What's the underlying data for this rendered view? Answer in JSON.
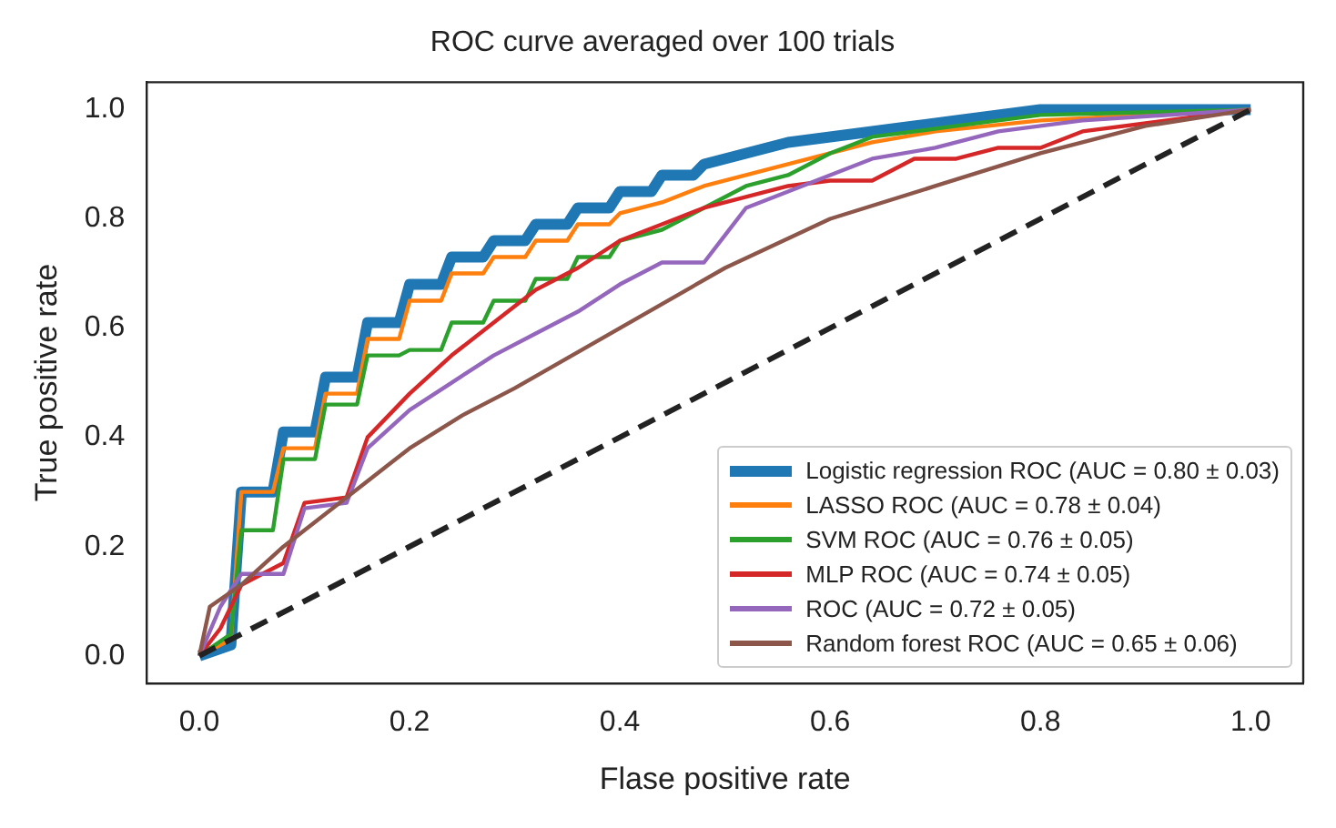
{
  "chart_data": {
    "type": "line",
    "title": "ROC curve averaged over 100 trials",
    "xlabel": "Flase positive rate",
    "ylabel": "True positive rate",
    "xlim": [
      -0.05,
      1.05
    ],
    "ylim": [
      -0.05,
      1.05
    ],
    "xticks": [
      {
        "value": 0,
        "label": "0.0"
      },
      {
        "value": 0.2,
        "label": "0.2"
      },
      {
        "value": 0.4,
        "label": "0.4"
      },
      {
        "value": 0.6,
        "label": "0.6"
      },
      {
        "value": 0.8,
        "label": "0.8"
      },
      {
        "value": 1,
        "label": "1.0"
      }
    ],
    "yticks": [
      {
        "value": 0,
        "label": "0.0"
      },
      {
        "value": 0.2,
        "label": "0.2"
      },
      {
        "value": 0.4,
        "label": "0.4"
      },
      {
        "value": 0.6,
        "label": "0.6"
      },
      {
        "value": 0.8,
        "label": "0.8"
      },
      {
        "value": 1,
        "label": "1.0"
      }
    ],
    "grid": false,
    "legend": "bottom right",
    "marker": "none",
    "series": [
      {
        "name": "Logistic regression ROC (AUC = 0.80 ± 0.03)",
        "color": "#1f77b4",
        "x": [
          0,
          0.03,
          0.04,
          0.07,
          0.08,
          0.11,
          0.12,
          0.15,
          0.16,
          0.19,
          0.2,
          0.23,
          0.24,
          0.27,
          0.28,
          0.31,
          0.32,
          0.35,
          0.36,
          0.39,
          0.4,
          0.43,
          0.44,
          0.47,
          0.48,
          0.52,
          0.56,
          0.6,
          0.64,
          0.68,
          0.72,
          0.76,
          0.8,
          1
        ],
        "values": [
          0,
          0.02,
          0.3,
          0.3,
          0.41,
          0.41,
          0.51,
          0.51,
          0.61,
          0.61,
          0.68,
          0.68,
          0.73,
          0.73,
          0.76,
          0.76,
          0.79,
          0.79,
          0.82,
          0.82,
          0.85,
          0.85,
          0.88,
          0.88,
          0.9,
          0.92,
          0.94,
          0.95,
          0.96,
          0.97,
          0.98,
          0.99,
          1,
          1
        ]
      },
      {
        "name": "LASSO ROC (AUC = 0.78 ± 0.04)",
        "color": "#ff7f0e",
        "x": [
          0,
          0.03,
          0.04,
          0.07,
          0.08,
          0.11,
          0.12,
          0.15,
          0.16,
          0.19,
          0.2,
          0.23,
          0.24,
          0.27,
          0.28,
          0.31,
          0.32,
          0.35,
          0.36,
          0.39,
          0.4,
          0.44,
          0.48,
          0.52,
          0.56,
          0.6,
          0.64,
          0.7,
          0.8,
          1
        ],
        "values": [
          0,
          0.03,
          0.3,
          0.3,
          0.38,
          0.38,
          0.48,
          0.48,
          0.58,
          0.58,
          0.65,
          0.65,
          0.7,
          0.7,
          0.73,
          0.73,
          0.76,
          0.76,
          0.79,
          0.79,
          0.81,
          0.83,
          0.86,
          0.88,
          0.9,
          0.92,
          0.94,
          0.96,
          0.98,
          1
        ]
      },
      {
        "name": "SVM ROC (AUC = 0.76 ± 0.05)",
        "color": "#2ca02c",
        "x": [
          0,
          0.03,
          0.04,
          0.07,
          0.08,
          0.11,
          0.12,
          0.15,
          0.16,
          0.19,
          0.2,
          0.23,
          0.24,
          0.27,
          0.28,
          0.31,
          0.32,
          0.35,
          0.36,
          0.39,
          0.4,
          0.44,
          0.48,
          0.52,
          0.56,
          0.6,
          0.64,
          0.72,
          0.8,
          1
        ],
        "values": [
          0,
          0.04,
          0.23,
          0.23,
          0.36,
          0.36,
          0.46,
          0.46,
          0.55,
          0.55,
          0.56,
          0.56,
          0.61,
          0.61,
          0.65,
          0.65,
          0.69,
          0.69,
          0.73,
          0.73,
          0.76,
          0.78,
          0.82,
          0.86,
          0.88,
          0.92,
          0.95,
          0.97,
          0.99,
          1
        ]
      },
      {
        "name": "MLP ROC (AUC = 0.74 ± 0.05)",
        "color": "#d62728",
        "x": [
          0,
          0.02,
          0.04,
          0.08,
          0.1,
          0.14,
          0.16,
          0.2,
          0.24,
          0.28,
          0.32,
          0.36,
          0.4,
          0.44,
          0.48,
          0.52,
          0.56,
          0.6,
          0.64,
          0.68,
          0.72,
          0.76,
          0.8,
          0.84,
          1
        ],
        "values": [
          0,
          0.05,
          0.13,
          0.17,
          0.28,
          0.29,
          0.4,
          0.48,
          0.55,
          0.61,
          0.67,
          0.71,
          0.76,
          0.79,
          0.82,
          0.84,
          0.86,
          0.87,
          0.87,
          0.91,
          0.91,
          0.93,
          0.93,
          0.96,
          1
        ]
      },
      {
        "name": "ROC (AUC = 0.72 ± 0.05)",
        "color": "#9467bd",
        "x": [
          0,
          0.02,
          0.04,
          0.08,
          0.1,
          0.14,
          0.16,
          0.2,
          0.24,
          0.28,
          0.32,
          0.36,
          0.4,
          0.44,
          0.48,
          0.52,
          0.56,
          0.6,
          0.64,
          0.7,
          0.76,
          0.84,
          1
        ],
        "values": [
          0,
          0.09,
          0.15,
          0.15,
          0.27,
          0.28,
          0.38,
          0.45,
          0.5,
          0.55,
          0.59,
          0.63,
          0.68,
          0.72,
          0.72,
          0.82,
          0.85,
          0.88,
          0.91,
          0.93,
          0.96,
          0.98,
          1
        ]
      },
      {
        "name": "Random forest ROC (AUC = 0.65 ± 0.06)",
        "color": "#8c564b",
        "x": [
          0,
          0.01,
          0.04,
          0.08,
          0.12,
          0.16,
          0.2,
          0.25,
          0.3,
          0.4,
          0.5,
          0.6,
          0.7,
          0.8,
          0.9,
          1
        ],
        "values": [
          0,
          0.09,
          0.13,
          0.2,
          0.26,
          0.32,
          0.38,
          0.44,
          0.49,
          0.6,
          0.71,
          0.8,
          0.86,
          0.92,
          0.97,
          1
        ]
      },
      {
        "color": "#222222",
        "line_style": "dashed",
        "x": [
          0,
          1
        ],
        "values": [
          0,
          1
        ]
      }
    ]
  }
}
